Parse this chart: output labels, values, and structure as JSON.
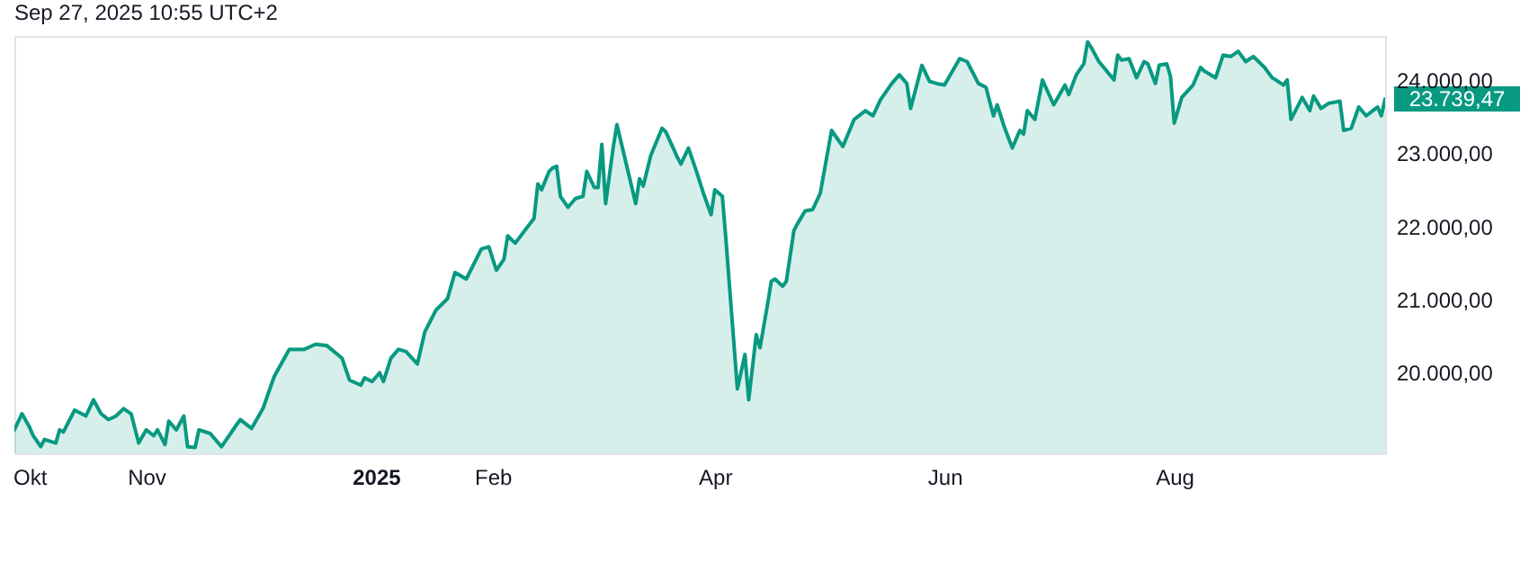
{
  "chart_data": {
    "type": "area",
    "title": "Sep 27, 2025 10:55 UTC+2",
    "x": [
      "2024-09-27",
      "2024-09-29",
      "2024-10-01",
      "2024-10-02",
      "2024-10-04",
      "2024-10-05",
      "2024-10-08",
      "2024-10-09",
      "2024-10-10",
      "2024-10-13",
      "2024-10-16",
      "2024-10-18",
      "2024-10-20",
      "2024-10-22",
      "2024-10-24",
      "2024-10-26",
      "2024-10-28",
      "2024-10-30",
      "2024-11-01",
      "2024-11-03",
      "2024-11-04",
      "2024-11-06",
      "2024-11-07",
      "2024-11-09",
      "2024-11-11",
      "2024-11-12",
      "2024-11-14",
      "2024-11-15",
      "2024-11-18",
      "2024-11-21",
      "2024-11-25",
      "2024-11-26",
      "2024-11-29",
      "2024-12-02",
      "2024-12-05",
      "2024-12-09",
      "2024-12-13",
      "2024-12-16",
      "2024-12-19",
      "2024-12-23",
      "2024-12-25",
      "2024-12-28",
      "2024-12-29",
      "2024-12-31",
      "2025-01-02",
      "2025-01-03",
      "2025-01-05",
      "2025-01-07",
      "2025-01-09",
      "2025-01-12",
      "2025-01-14",
      "2025-01-17",
      "2025-01-20",
      "2025-01-22",
      "2025-01-25",
      "2025-01-29",
      "2025-01-31",
      "2025-02-02",
      "2025-02-04",
      "2025-02-05",
      "2025-02-07",
      "2025-02-12",
      "2025-02-13",
      "2025-02-14",
      "2025-02-16",
      "2025-02-17",
      "2025-02-18",
      "2025-02-19",
      "2025-02-21",
      "2025-02-23",
      "2025-02-25",
      "2025-02-26",
      "2025-02-28",
      "2025-03-01",
      "2025-03-02",
      "2025-03-03",
      "2025-03-05",
      "2025-03-06",
      "2025-03-11",
      "2025-03-12",
      "2025-03-13",
      "2025-03-15",
      "2025-03-18",
      "2025-03-19",
      "2025-03-22",
      "2025-03-23",
      "2025-03-25",
      "2025-03-27",
      "2025-03-29",
      "2025-03-31",
      "2025-04-01",
      "2025-04-03",
      "2025-04-04",
      "2025-04-07",
      "2025-04-09",
      "2025-04-10",
      "2025-04-12",
      "2025-04-13",
      "2025-04-15",
      "2025-04-16",
      "2025-04-17",
      "2025-04-19",
      "2025-04-20",
      "2025-04-22",
      "2025-04-23",
      "2025-04-25",
      "2025-04-27",
      "2025-04-29",
      "2025-05-02",
      "2025-05-05",
      "2025-05-08",
      "2025-05-11",
      "2025-05-13",
      "2025-05-15",
      "2025-05-18",
      "2025-05-20",
      "2025-05-22",
      "2025-05-23",
      "2025-05-25",
      "2025-05-26",
      "2025-05-28",
      "2025-05-30",
      "2025-06-01",
      "2025-06-05",
      "2025-06-07",
      "2025-06-10",
      "2025-06-12",
      "2025-06-14",
      "2025-06-15",
      "2025-06-17",
      "2025-06-19",
      "2025-06-21",
      "2025-06-22",
      "2025-06-23",
      "2025-06-25",
      "2025-06-27",
      "2025-06-30",
      "2025-07-03",
      "2025-07-04",
      "2025-07-06",
      "2025-07-08",
      "2025-07-09",
      "2025-07-10",
      "2025-07-12",
      "2025-07-16",
      "2025-07-17",
      "2025-07-18",
      "2025-07-20",
      "2025-07-22",
      "2025-07-24",
      "2025-07-25",
      "2025-07-27",
      "2025-07-28",
      "2025-07-30",
      "2025-07-31",
      "2025-08-01",
      "2025-08-03",
      "2025-08-06",
      "2025-08-08",
      "2025-08-09",
      "2025-08-12",
      "2025-08-14",
      "2025-08-16",
      "2025-08-18",
      "2025-08-20",
      "2025-08-22",
      "2025-08-25",
      "2025-08-27",
      "2025-08-28",
      "2025-08-30",
      "2025-08-31",
      "2025-09-01",
      "2025-09-04",
      "2025-09-06",
      "2025-09-07",
      "2025-09-09",
      "2025-09-11",
      "2025-09-14",
      "2025-09-15",
      "2025-09-17",
      "2025-09-19",
      "2025-09-21",
      "2025-09-24",
      "2025-09-25",
      "2025-09-26"
    ],
    "series": [
      {
        "color": "#089981",
        "values": [
          19220,
          19440,
          19260,
          19140,
          18990,
          19090,
          19040,
          19220,
          19190,
          19490,
          19410,
          19630,
          19440,
          19360,
          19410,
          19510,
          19440,
          19040,
          19220,
          19140,
          19220,
          19020,
          19340,
          19220,
          19410,
          18990,
          18980,
          19220,
          19170,
          18990,
          19290,
          19360,
          19240,
          19510,
          19950,
          20320,
          20320,
          20390,
          20370,
          20200,
          19900,
          19830,
          19930,
          19880,
          20000,
          19880,
          20200,
          20320,
          20290,
          20120,
          20560,
          20860,
          21010,
          21370,
          21280,
          21690,
          21720,
          21400,
          21550,
          21870,
          21770,
          22110,
          22580,
          22500,
          22750,
          22800,
          22820,
          22410,
          22260,
          22380,
          22410,
          22750,
          22530,
          22530,
          23120,
          22310,
          23070,
          23390,
          22310,
          22650,
          22550,
          22970,
          23340,
          23290,
          22950,
          22850,
          23070,
          22770,
          22450,
          22160,
          22500,
          22410,
          21790,
          19780,
          20250,
          19630,
          20520,
          20340,
          20930,
          21250,
          21280,
          21180,
          21250,
          21940,
          22040,
          22210,
          22230,
          22450,
          23310,
          23090,
          23460,
          23580,
          23510,
          23730,
          23950,
          24070,
          23950,
          23610,
          24000,
          24200,
          23980,
          23950,
          23930,
          24290,
          24250,
          23950,
          23900,
          23510,
          23660,
          23340,
          23070,
          23310,
          23260,
          23580,
          23460,
          24000,
          23660,
          23930,
          23800,
          24070,
          24220,
          24520,
          24440,
          24250,
          24000,
          24340,
          24270,
          24290,
          24030,
          24250,
          24220,
          23950,
          24200,
          24220,
          24050,
          23410,
          23760,
          23930,
          24170,
          24120,
          24030,
          24340,
          24320,
          24390,
          24250,
          24320,
          24170,
          24030,
          24000,
          23930,
          24000,
          23460,
          23760,
          23580,
          23780,
          23610,
          23680,
          23710,
          23310,
          23340,
          23630,
          23510,
          23630,
          23510,
          23739.47
        ]
      }
    ],
    "xlim": [
      "2024-09-27",
      "2025-09-26"
    ],
    "xticks": [
      {
        "value": "2024-10-01",
        "label": "Okt"
      },
      {
        "value": "2024-11-01",
        "label": "Nov"
      },
      {
        "value": "2025-01-01",
        "label": "2025"
      },
      {
        "value": "2025-02-01",
        "label": "Feb"
      },
      {
        "value": "2025-04-01",
        "label": "Apr"
      },
      {
        "value": "2025-06-01",
        "label": "Jun"
      },
      {
        "value": "2025-08-01",
        "label": "Aug"
      }
    ],
    "ylim": [
      18900,
      24600
    ],
    "yticks": [
      {
        "value": 20000,
        "label": "20.000,00"
      },
      {
        "value": 21000,
        "label": "21.000,00"
      },
      {
        "value": 22000,
        "label": "22.000,00"
      },
      {
        "value": 23000,
        "label": "23.000,00"
      },
      {
        "value": 24000,
        "label": "24.000,00"
      }
    ],
    "annotations": [
      {
        "text": "23.739,47",
        "x": "2025-09-26",
        "y": 23739.47
      }
    ]
  }
}
